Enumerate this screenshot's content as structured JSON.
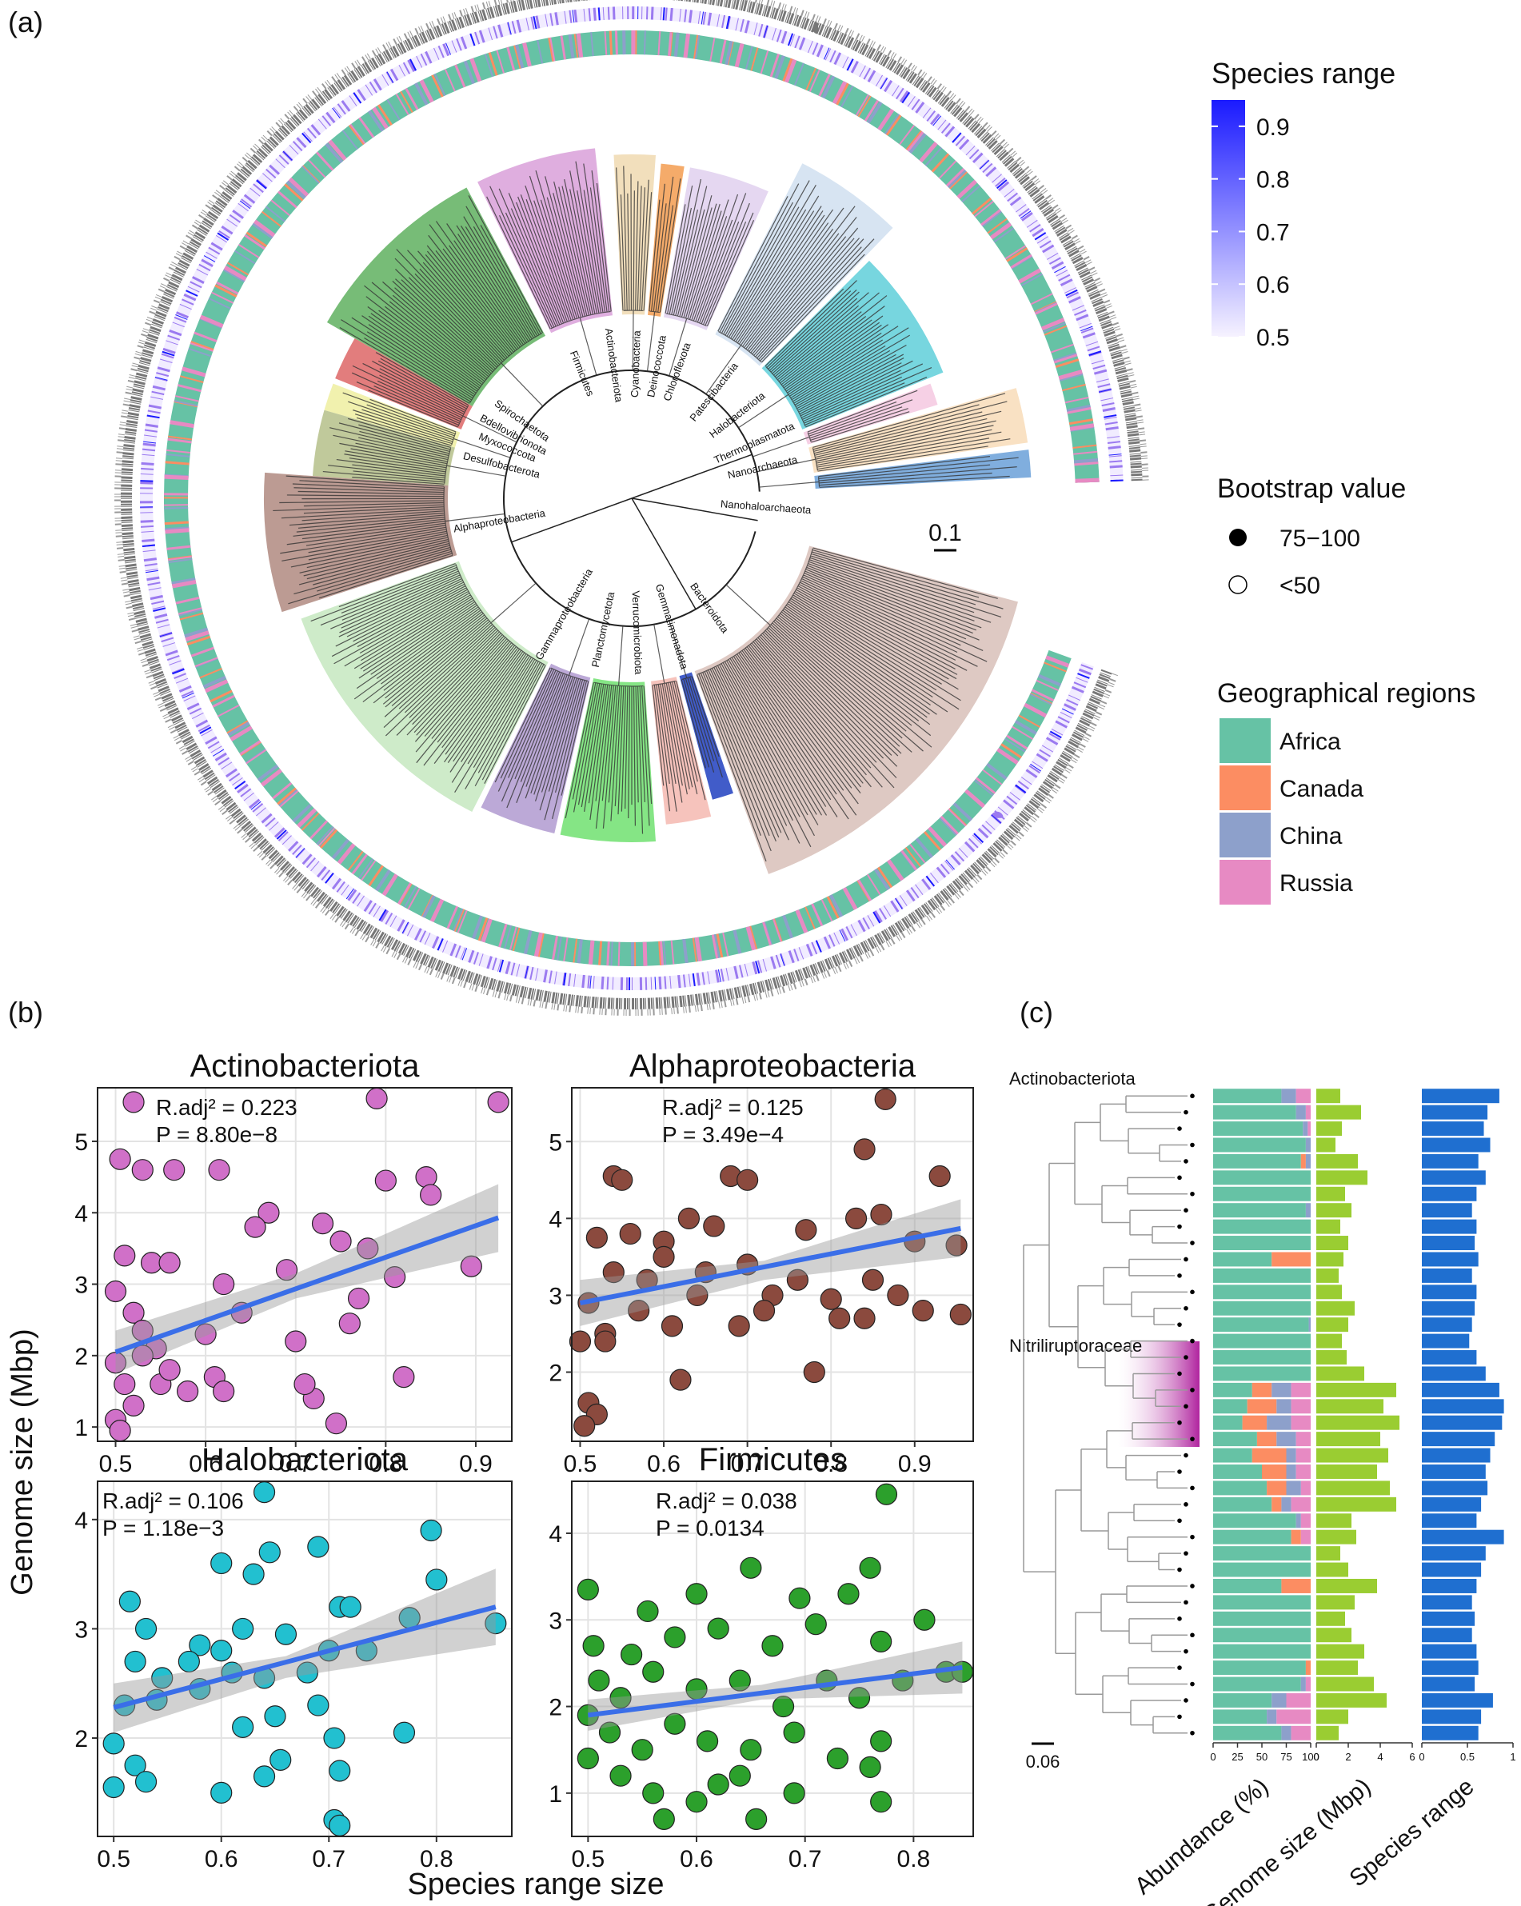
{
  "panel_labels": [
    "(a)",
    "(b)",
    "(c)"
  ],
  "tree": {
    "scale_bar": "0.1",
    "clades": [
      {
        "name": "Firmicutes",
        "color": "#5fb05f"
      },
      {
        "name": "Actinobacteriota",
        "color": "#d9a0d9"
      },
      {
        "name": "Cyanobacteria",
        "color": "#f0d9b0"
      },
      {
        "name": "Deinococcota",
        "color": "#f39c50"
      },
      {
        "name": "Chloroflexota",
        "color": "#e0d0ee"
      },
      {
        "name": "Patescibacteria",
        "color": "#d0dff0"
      },
      {
        "name": "Halobacteriota",
        "color": "#5fcfd9"
      },
      {
        "name": "Thermoplasmatota",
        "color": "#f5c8e0"
      },
      {
        "name": "Nanoarchaeota",
        "color": "#f8dcb8"
      },
      {
        "name": "Nanohaloarchaeota",
        "color": "#6aa0d8"
      },
      {
        "name": "Spirochaetota",
        "color": "#dd6666"
      },
      {
        "name": "Bdellovibrionota",
        "color": "#eeeea0"
      },
      {
        "name": "Myxococcota",
        "color": "#b5c08a"
      },
      {
        "name": "Desulfobacterota",
        "color": "#b08a80"
      },
      {
        "name": "Alphaproteobacteria",
        "color": "#c6e8c0"
      },
      {
        "name": "Gammaproteobacteria",
        "color": "#b09ad0"
      },
      {
        "name": "Planctomycetota",
        "color": "#70e070"
      },
      {
        "name": "Verrucomicrobiota",
        "color": "#f5b8b0"
      },
      {
        "name": "Gemmatimonadota",
        "color": "#2040c0"
      },
      {
        "name": "Bacteroidota",
        "color": "#d8c0b8"
      }
    ]
  },
  "legend": {
    "colorbar": {
      "title": "Species range",
      "lim": [
        0.5,
        0.95
      ],
      "ticks": [
        0.5,
        0.6,
        0.7,
        0.8,
        0.9
      ],
      "colors": [
        "#f6f2ff",
        "#1a1aff"
      ]
    },
    "bootstrap": {
      "title": "Bootstrap value",
      "items": [
        "75−100",
        "<50"
      ]
    },
    "regions_title": "Geographical regions"
  },
  "panel_b": {
    "xlabel": "Species range size",
    "ylabel": "Genome size (Mbp)"
  },
  "panel_c": {
    "clade_labels": [
      "Actinobacteriota",
      "Nitriliruptoraceae"
    ],
    "scale_bar": "0.06"
  },
  "chart_data": [
    {
      "type": "scatter",
      "title": "Actinobacteriota",
      "color": "#d070c8",
      "annotations": [
        "R.adj² = 0.223",
        "P = 8.80e−8"
      ],
      "xlim": [
        0.48,
        0.94
      ],
      "xticks": [
        0.5,
        0.6,
        0.7,
        0.8,
        0.9
      ],
      "ylim": [
        0.8,
        5.75
      ],
      "yticks": [
        1,
        2,
        3,
        4,
        5
      ],
      "grid": true,
      "x": [
        0.52,
        0.925,
        0.79,
        0.505,
        0.53,
        0.565,
        0.615,
        0.8,
        0.845,
        0.85,
        0.67,
        0.655,
        0.73,
        0.75,
        0.78,
        0.51,
        0.54,
        0.56,
        0.62,
        0.69,
        0.77,
        0.81,
        0.895,
        0.5,
        0.52,
        0.53,
        0.545,
        0.6,
        0.64,
        0.7,
        0.76,
        0.5,
        0.51,
        0.52,
        0.5,
        0.505,
        0.55,
        0.58,
        0.61,
        0.62,
        0.72,
        0.71,
        0.745,
        0.82,
        0.53,
        0.56
      ],
      "values": [
        5.55,
        5.55,
        5.6,
        4.75,
        4.6,
        4.6,
        4.6,
        4.45,
        4.5,
        4.25,
        4.0,
        3.8,
        3.85,
        3.6,
        3.5,
        3.4,
        3.3,
        3.3,
        3.0,
        3.2,
        2.8,
        3.1,
        3.25,
        2.9,
        2.6,
        2.35,
        2.1,
        2.3,
        2.6,
        2.2,
        2.45,
        1.9,
        1.6,
        1.3,
        1.1,
        0.95,
        1.6,
        1.5,
        1.7,
        1.5,
        1.4,
        1.6,
        1.05,
        1.7,
        2.0,
        1.8
      ],
      "fit": {
        "color": "#3a6ee8",
        "x": [
          0.5,
          0.925
        ],
        "values": [
          2.05,
          3.93
        ]
      },
      "ci": {
        "x": [
          0.5,
          0.7,
          0.925
        ],
        "lower": [
          1.75,
          2.8,
          3.45
        ],
        "upper": [
          2.35,
          3.15,
          4.4
        ]
      }
    },
    {
      "type": "scatter",
      "title": "Alphaproteobacteria",
      "color": "#8b4a3e",
      "annotations": [
        "R.adj² = 0.125",
        "P = 3.49e−4"
      ],
      "xlim": [
        0.49,
        0.97
      ],
      "xticks": [
        0.5,
        0.6,
        0.7,
        0.8,
        0.9
      ],
      "ylim": [
        1.1,
        5.7
      ],
      "yticks": [
        2,
        3,
        4,
        5
      ],
      "grid": true,
      "x": [
        0.865,
        0.54,
        0.55,
        0.68,
        0.7,
        0.84,
        0.93,
        0.52,
        0.56,
        0.6,
        0.63,
        0.66,
        0.77,
        0.83,
        0.86,
        0.54,
        0.58,
        0.6,
        0.65,
        0.7,
        0.73,
        0.76,
        0.8,
        0.85,
        0.9,
        0.95,
        0.51,
        0.53,
        0.57,
        0.61,
        0.64,
        0.69,
        0.72,
        0.81,
        0.84,
        0.91,
        0.955,
        0.5,
        0.53,
        0.62,
        0.78,
        0.51,
        0.52,
        0.505,
        0.88
      ],
      "values": [
        5.55,
        4.55,
        4.5,
        4.55,
        4.5,
        4.9,
        4.55,
        3.75,
        3.8,
        3.7,
        4.0,
        3.9,
        3.85,
        4.0,
        4.05,
        3.3,
        3.2,
        3.5,
        3.3,
        3.4,
        3.0,
        3.2,
        2.95,
        3.2,
        3.7,
        3.65,
        2.9,
        2.5,
        2.8,
        2.6,
        3.0,
        2.6,
        2.8,
        2.7,
        2.7,
        2.8,
        2.75,
        2.4,
        2.4,
        1.9,
        2.0,
        1.6,
        1.45,
        1.3,
        3.0
      ],
      "fit": {
        "color": "#3a6ee8",
        "x": [
          0.5,
          0.955
        ],
        "values": [
          2.9,
          3.87
        ]
      },
      "ci": {
        "x": [
          0.5,
          0.72,
          0.955
        ],
        "lower": [
          2.6,
          3.2,
          3.5
        ],
        "upper": [
          3.2,
          3.45,
          4.25
        ]
      }
    },
    {
      "type": "scatter",
      "title": "Halobacteriota",
      "color": "#22c0d0",
      "annotations": [
        "R.adj² = 0.106",
        "P = 1.18e−3"
      ],
      "xlim": [
        0.485,
        0.87
      ],
      "xticks": [
        0.5,
        0.6,
        0.7,
        0.8
      ],
      "ylim": [
        1.1,
        4.35
      ],
      "yticks": [
        2,
        3,
        4
      ],
      "grid": true,
      "x": [
        0.64,
        0.795,
        0.69,
        0.645,
        0.6,
        0.63,
        0.8,
        0.515,
        0.53,
        0.58,
        0.6,
        0.62,
        0.66,
        0.71,
        0.72,
        0.775,
        0.855,
        0.52,
        0.545,
        0.57,
        0.61,
        0.64,
        0.68,
        0.7,
        0.735,
        0.51,
        0.54,
        0.58,
        0.62,
        0.65,
        0.69,
        0.705,
        0.77,
        0.5,
        0.52,
        0.53,
        0.5,
        0.6,
        0.64,
        0.655,
        0.71,
        0.705,
        0.71
      ],
      "values": [
        4.25,
        3.9,
        3.75,
        3.7,
        3.6,
        3.5,
        3.45,
        3.25,
        3.0,
        2.85,
        2.8,
        3.0,
        2.95,
        3.2,
        3.2,
        3.1,
        3.05,
        2.7,
        2.55,
        2.7,
        2.6,
        2.55,
        2.6,
        2.8,
        2.8,
        2.3,
        2.35,
        2.45,
        2.1,
        2.2,
        2.3,
        2.0,
        2.05,
        1.95,
        1.75,
        1.6,
        1.55,
        1.5,
        1.65,
        1.8,
        1.7,
        1.25,
        1.2
      ],
      "fit": {
        "color": "#3a6ee8",
        "x": [
          0.5,
          0.855
        ],
        "values": [
          2.28,
          3.2
        ]
      },
      "ci": {
        "x": [
          0.5,
          0.66,
          0.855
        ],
        "lower": [
          2.05,
          2.55,
          2.85
        ],
        "upper": [
          2.5,
          2.75,
          3.55
        ]
      }
    },
    {
      "type": "scatter",
      "title": "Firmicutes",
      "color": "#2ca02c",
      "annotations": [
        "R.adj² = 0.038",
        "P = 0.0134"
      ],
      "xlim": [
        0.485,
        0.855
      ],
      "xticks": [
        0.5,
        0.6,
        0.7,
        0.8
      ],
      "ylim": [
        0.5,
        4.6
      ],
      "yticks": [
        1,
        2,
        3,
        4
      ],
      "grid": true,
      "x": [
        0.775,
        0.5,
        0.65,
        0.76,
        0.555,
        0.6,
        0.695,
        0.74,
        0.81,
        0.505,
        0.54,
        0.58,
        0.62,
        0.67,
        0.71,
        0.77,
        0.83,
        0.845,
        0.51,
        0.53,
        0.56,
        0.6,
        0.64,
        0.68,
        0.72,
        0.75,
        0.79,
        0.5,
        0.52,
        0.55,
        0.58,
        0.61,
        0.65,
        0.69,
        0.73,
        0.77,
        0.5,
        0.53,
        0.56,
        0.6,
        0.64,
        0.69,
        0.76,
        0.57,
        0.655,
        0.77,
        0.62
      ],
      "values": [
        4.45,
        3.35,
        3.6,
        3.6,
        3.1,
        3.3,
        3.25,
        3.3,
        3.0,
        2.7,
        2.6,
        2.8,
        2.9,
        2.7,
        2.95,
        2.75,
        2.4,
        2.4,
        2.3,
        2.1,
        2.4,
        2.2,
        2.3,
        2.0,
        2.3,
        2.1,
        2.3,
        1.9,
        1.7,
        1.5,
        1.8,
        1.6,
        1.5,
        1.7,
        1.4,
        1.6,
        1.4,
        1.2,
        1.0,
        0.9,
        1.2,
        1.0,
        1.3,
        0.7,
        0.7,
        0.9,
        1.1
      ],
      "fit": {
        "color": "#3a6ee8",
        "x": [
          0.5,
          0.845
        ],
        "values": [
          1.9,
          2.45
        ]
      },
      "ci": {
        "x": [
          0.5,
          0.66,
          0.845
        ],
        "lower": [
          1.72,
          2.08,
          2.15
        ],
        "upper": [
          2.08,
          2.25,
          2.75
        ]
      }
    },
    {
      "type": "stacked_barh",
      "xlabel": "Abundance (%)",
      "xlim": [
        0,
        100
      ],
      "xticks": [
        0,
        25,
        50,
        75,
        100
      ],
      "series": [
        {
          "name": "Africa",
          "color": "#66c2a5",
          "values": [
            70,
            85,
            92,
            95,
            90,
            100,
            100,
            95,
            100,
            100,
            60,
            100,
            100,
            100,
            98,
            100,
            100,
            100,
            40,
            35,
            30,
            45,
            40,
            50,
            55,
            60,
            85,
            80,
            100,
            100,
            70,
            100,
            100,
            100,
            100,
            95,
            90,
            60,
            55,
            70
          ]
        },
        {
          "name": "Canada",
          "color": "#fc8d62",
          "values": [
            0,
            0,
            0,
            0,
            5,
            0,
            0,
            0,
            0,
            0,
            40,
            0,
            0,
            0,
            0,
            0,
            0,
            0,
            20,
            30,
            25,
            20,
            35,
            25,
            20,
            10,
            0,
            10,
            0,
            0,
            30,
            0,
            0,
            0,
            0,
            5,
            0,
            0,
            0,
            0
          ]
        },
        {
          "name": "China",
          "color": "#8da0cb",
          "values": [
            15,
            10,
            5,
            5,
            5,
            0,
            0,
            5,
            0,
            0,
            0,
            0,
            0,
            0,
            2,
            0,
            0,
            0,
            20,
            15,
            25,
            20,
            10,
            10,
            15,
            10,
            5,
            0,
            0,
            0,
            0,
            0,
            0,
            0,
            0,
            0,
            5,
            15,
            10,
            10
          ]
        },
        {
          "name": "Russia",
          "color": "#e78ac3",
          "values": [
            15,
            5,
            3,
            0,
            0,
            0,
            0,
            0,
            0,
            0,
            0,
            0,
            0,
            0,
            0,
            0,
            0,
            0,
            20,
            20,
            20,
            15,
            15,
            15,
            10,
            20,
            10,
            10,
            0,
            0,
            0,
            0,
            0,
            0,
            0,
            0,
            5,
            25,
            35,
            20
          ]
        }
      ]
    },
    {
      "type": "barh",
      "xlabel": "Genome size (Mbp)",
      "xlim": [
        0,
        6
      ],
      "xticks": [
        0,
        2,
        4,
        6
      ],
      "color": "#9acd32",
      "values": [
        1.5,
        2.8,
        1.6,
        1.2,
        2.6,
        3.2,
        1.8,
        2.2,
        1.5,
        2.0,
        1.7,
        1.4,
        1.6,
        2.4,
        2.0,
        1.6,
        1.9,
        3.0,
        5.0,
        4.2,
        5.2,
        4.0,
        4.5,
        3.8,
        4.6,
        5.0,
        2.2,
        2.5,
        1.5,
        2.0,
        3.8,
        2.4,
        1.8,
        2.2,
        3.0,
        2.6,
        3.6,
        4.4,
        2.0,
        1.4
      ]
    },
    {
      "type": "barh",
      "xlabel": "Species range",
      "xlim": [
        0,
        1
      ],
      "xticks": [
        0,
        0.5,
        1
      ],
      "color": "#1f6fd0",
      "values": [
        0.85,
        0.72,
        0.68,
        0.75,
        0.62,
        0.7,
        0.6,
        0.55,
        0.6,
        0.58,
        0.62,
        0.55,
        0.6,
        0.58,
        0.55,
        0.52,
        0.6,
        0.7,
        0.85,
        0.9,
        0.88,
        0.8,
        0.75,
        0.7,
        0.72,
        0.65,
        0.6,
        0.9,
        0.7,
        0.65,
        0.6,
        0.55,
        0.58,
        0.55,
        0.6,
        0.62,
        0.58,
        0.78,
        0.65,
        0.62
      ]
    }
  ]
}
